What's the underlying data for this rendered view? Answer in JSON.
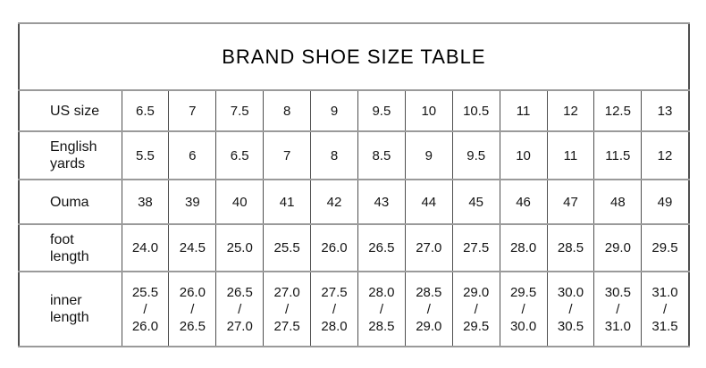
{
  "title": "BRAND SHOE SIZE TABLE",
  "chart_data": {
    "type": "table",
    "title": "BRAND SHOE SIZE TABLE",
    "rows": [
      {
        "label": "US size",
        "values": [
          "6.5",
          "7",
          "7.5",
          "8",
          "9",
          "9.5",
          "10",
          "10.5",
          "11",
          "12",
          "12.5",
          "13"
        ]
      },
      {
        "label": "English yards",
        "values": [
          "5.5",
          "6",
          "6.5",
          "7",
          "8",
          "8.5",
          "9",
          "9.5",
          "10",
          "11",
          "11.5",
          "12"
        ]
      },
      {
        "label": "Ouma",
        "values": [
          "38",
          "39",
          "40",
          "41",
          "42",
          "43",
          "44",
          "45",
          "46",
          "47",
          "48",
          "49"
        ]
      },
      {
        "label": "foot length",
        "values": [
          "24.0",
          "24.5",
          "25.0",
          "25.5",
          "26.0",
          "26.5",
          "27.0",
          "27.5",
          "28.0",
          "28.5",
          "29.0",
          "29.5"
        ]
      },
      {
        "label": "inner length",
        "values": [
          "25.5\n/\n26.0",
          "26.0\n/\n26.5",
          "26.5\n/\n27.0",
          "27.0\n/\n27.5",
          "27.5\n/\n28.0",
          "28.0\n/\n28.5",
          "28.5\n/\n29.0",
          "29.0\n/\n29.5",
          "29.5\n/\n30.0",
          "30.0\n/\n30.5",
          "30.5\n/\n31.0",
          "31.0\n/\n31.5"
        ]
      }
    ]
  },
  "colors": {
    "border_dark": "#4f4f4f",
    "border_light": "#9a9a9a",
    "text": "#141414",
    "background": "#ffffff"
  }
}
